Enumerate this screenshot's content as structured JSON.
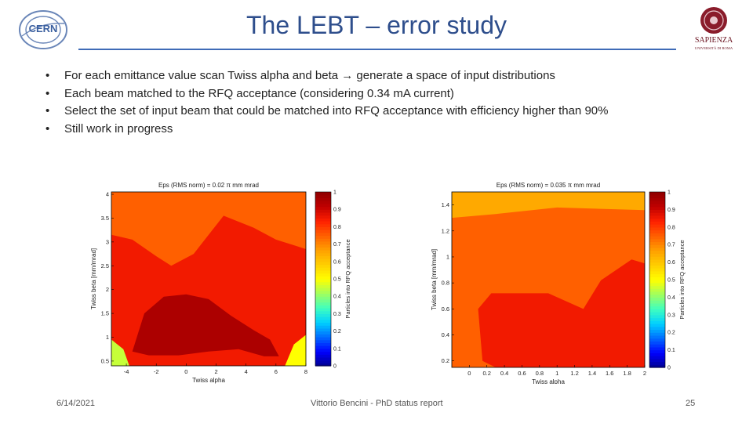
{
  "slide": {
    "title": "The LEBT – error study",
    "bullets": [
      "For each emittance value scan Twiss alpha and beta → generate a space of input distributions",
      "Each beam matched to the RFQ acceptance (considering 0.34 mA current)",
      "Select the set of input beam that could be matched into RFQ acceptance with efficiency higher than 90%",
      "Still work in progress"
    ],
    "bullet_symbol": "•"
  },
  "logos": {
    "left": {
      "text": "CERN",
      "icon": "cern-logo-icon"
    },
    "right": {
      "text": "SAPIENZA",
      "subtext": "UNIVERSITÀ DI ROMA",
      "icon": "sapienza-seal-icon"
    }
  },
  "footer": {
    "date": "6/14/2021",
    "author": "Vittorio Bencini - PhD status report",
    "page": "25"
  },
  "colors": {
    "title": "#2e4e8c",
    "rule": "#3f6bb7",
    "levels": [
      "#00008f",
      "#0000ff",
      "#006bff",
      "#00d0ff",
      "#3fffbf",
      "#a0ff5f",
      "#ffff00",
      "#ffcf00",
      "#ffa000",
      "#ff6000",
      "#ff2000",
      "#c00000",
      "#8f0000"
    ]
  },
  "chart_data": [
    {
      "type": "heatmap",
      "title": "Eps (RMS norm) = 0.02 π mm mrad",
      "xlabel": "Twiss alpha",
      "ylabel": "Twiss beta [mm/mrad]",
      "xlim": [
        -5,
        8
      ],
      "ylim": [
        0.4,
        4.05
      ],
      "x_ticks": [
        -4,
        -2,
        0,
        2,
        4,
        6,
        8
      ],
      "y_ticks": [
        4,
        3.5,
        3,
        2.5,
        2,
        1.5,
        1,
        0.5
      ],
      "colorbar": {
        "label": "Particles into RFQ acceptance",
        "range": [
          0,
          1
        ],
        "ticks": [
          0,
          0.1,
          0.2,
          0.3,
          0.4,
          0.5,
          0.6,
          0.7,
          0.8,
          0.9,
          1
        ]
      },
      "regions": [
        {
          "level": 0.75,
          "description": "background"
        },
        {
          "level": 0.85,
          "description": "central band"
        },
        {
          "level": 0.95,
          "description": "lower curved band"
        }
      ]
    },
    {
      "type": "heatmap",
      "title": "Eps (RMS norm) = 0.035 π mm mrad",
      "xlabel": "Twiss alpha",
      "ylabel": "Twiss beta [mm/mrad]",
      "xlim": [
        -0.2,
        2.0
      ],
      "ylim": [
        0.15,
        1.5
      ],
      "x_ticks": [
        0,
        0.2,
        0.4,
        0.6,
        0.8,
        1,
        1.2,
        1.4,
        1.6,
        1.8,
        2
      ],
      "y_ticks": [
        1.4,
        1.2,
        1,
        0.8,
        0.6,
        0.4,
        0.2
      ],
      "colorbar": {
        "label": "Particles into RFQ acceptance",
        "range": [
          0,
          1
        ],
        "ticks": [
          0,
          0.1,
          0.2,
          0.3,
          0.4,
          0.5,
          0.6,
          0.7,
          0.8,
          0.9,
          1
        ]
      },
      "regions": [
        {
          "level": 0.7,
          "description": "top strip"
        },
        {
          "level": 0.75,
          "description": "background"
        },
        {
          "level": 0.85,
          "description": "lower region"
        }
      ]
    }
  ]
}
